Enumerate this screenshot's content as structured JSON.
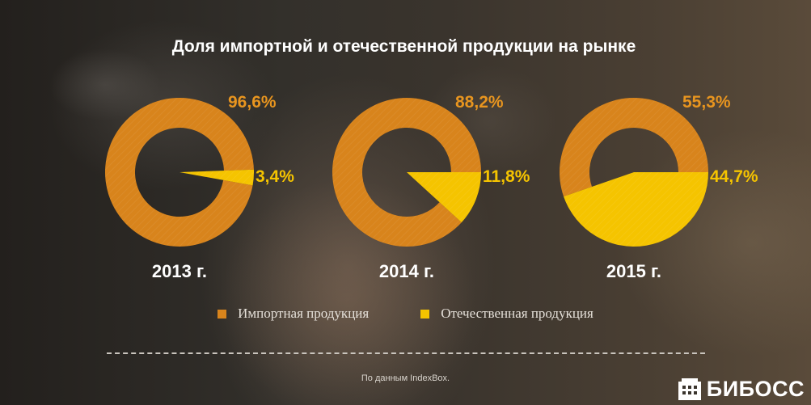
{
  "title": "Доля импортной и отечественной продукции на рынке",
  "chart_data": {
    "type": "pie",
    "series_names": [
      "Импортная продукция",
      "Отечественная продукция"
    ],
    "colors": {
      "import": "#d8841c",
      "domestic": "#f5c400"
    },
    "charts": [
      {
        "year_label": "2013 г.",
        "import_value": 96.6,
        "domestic_value": 3.4,
        "import_label": "96,6%",
        "domestic_label": "3,4%"
      },
      {
        "year_label": "2014 г.",
        "import_value": 88.2,
        "domestic_value": 11.8,
        "import_label": "88,2%",
        "domestic_label": "11,8%"
      },
      {
        "year_label": "2015 г.",
        "import_value": 55.3,
        "domestic_value": 44.7,
        "import_label": "55,3%",
        "domestic_label": "44,7%"
      }
    ],
    "legend": [
      "Импортная продукция",
      "Отечественная продукция"
    ]
  },
  "source": "По данным IndexBox.",
  "logo": {
    "text": "БИБОСС",
    "icon": "building-icon"
  }
}
